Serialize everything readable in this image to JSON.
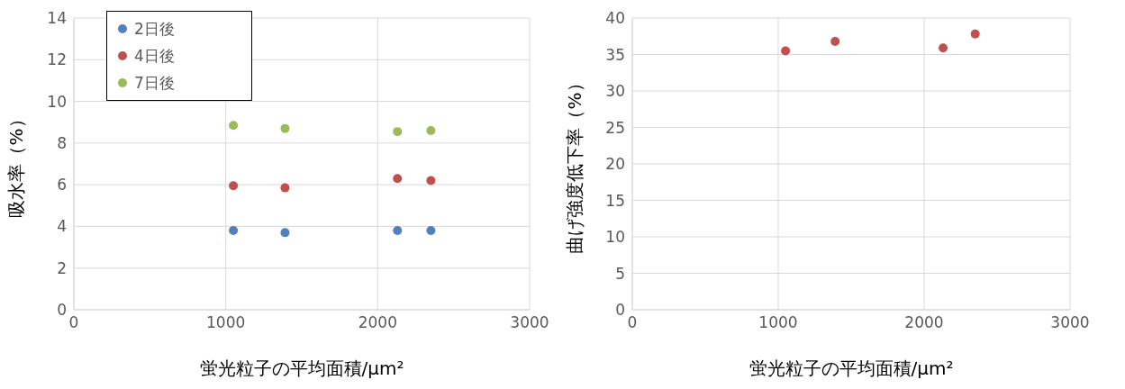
{
  "chart_data": [
    {
      "type": "scatter",
      "xlabel": "蛍光粒子の平均面積/μm²",
      "ylabel": "吸水率（%）",
      "x": [
        1050,
        1390,
        2130,
        2350
      ],
      "series": [
        {
          "name": "2日後",
          "color": "#4f81bd",
          "values": [
            3.8,
            3.7,
            3.8,
            3.8
          ]
        },
        {
          "name": "4日後",
          "color": "#c0504d",
          "values": [
            5.95,
            5.85,
            6.3,
            6.2
          ]
        },
        {
          "name": "7日後",
          "color": "#9bbb59",
          "values": [
            8.85,
            8.7,
            8.55,
            8.6
          ]
        }
      ],
      "xlim": [
        0,
        3000
      ],
      "xticks": [
        0,
        1000,
        2000,
        3000
      ],
      "ylim": [
        0,
        14
      ],
      "yticks": [
        0,
        2,
        4,
        6,
        8,
        10,
        12,
        14
      ],
      "grid": true,
      "legend": "top left",
      "marker": "circle"
    },
    {
      "type": "scatter",
      "xlabel": "蛍光粒子の平均面積/μm²",
      "ylabel": "曲げ強度低下率（%）",
      "x": [
        1050,
        1390,
        2130,
        2350
      ],
      "series": [
        {
          "color": "#c0504d",
          "values": [
            35.5,
            36.8,
            35.9,
            37.8
          ]
        }
      ],
      "xlim": [
        0,
        3000
      ],
      "xticks": [
        0,
        1000,
        2000,
        3000
      ],
      "ylim": [
        0,
        40
      ],
      "yticks": [
        0,
        5,
        10,
        15,
        20,
        25,
        30,
        35,
        40
      ],
      "grid": true,
      "marker": "circle"
    }
  ]
}
